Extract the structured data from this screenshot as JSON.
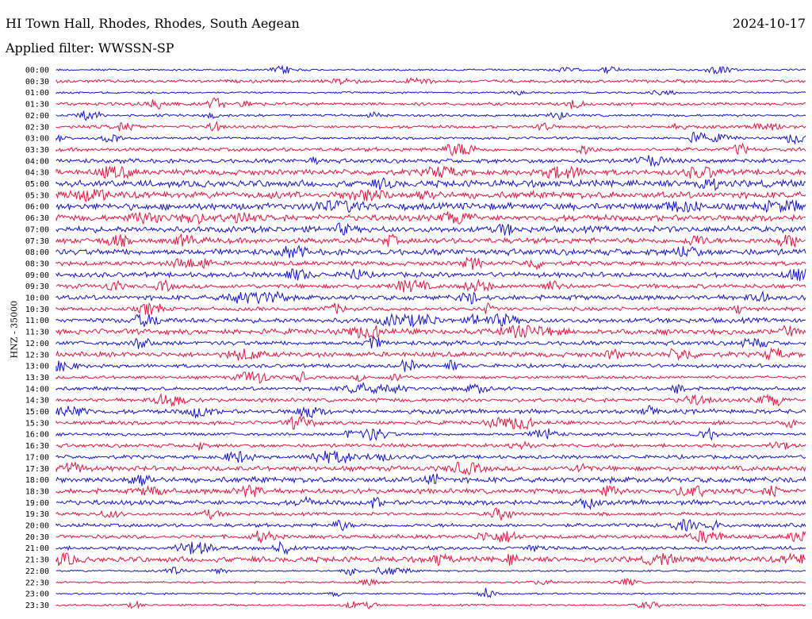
{
  "header": {
    "station": "HI Town Hall, Rhodes, Rhodes, South Aegean",
    "date": "2024-10-17",
    "filter": "Applied filter: WWSSN-SP"
  },
  "chart_data": {
    "type": "line",
    "title": "HI Town Hall, Rhodes, Rhodes, South Aegean",
    "ylabel": "HNZ - 35000",
    "row_labels": [
      "00:00",
      "00:30",
      "01:00",
      "01:30",
      "02:00",
      "02:30",
      "03:00",
      "03:30",
      "04:00",
      "04:30",
      "05:00",
      "05:30",
      "06:00",
      "06:30",
      "07:00",
      "07:30",
      "08:00",
      "08:30",
      "09:00",
      "09:30",
      "10:00",
      "10:30",
      "11:00",
      "11:30",
      "12:00",
      "12:30",
      "13:00",
      "13:30",
      "14:00",
      "14:30",
      "15:00",
      "15:30",
      "16:00",
      "16:30",
      "17:00",
      "17:30",
      "18:00",
      "18:30",
      "19:00",
      "19:30",
      "20:00",
      "20:30",
      "21:00",
      "21:30",
      "22:00",
      "22:30",
      "23:00",
      "23:30"
    ],
    "amplitude": [
      0.15,
      0.25,
      0.15,
      0.25,
      0.2,
      0.25,
      0.2,
      0.3,
      0.35,
      0.45,
      0.55,
      0.55,
      0.55,
      0.5,
      0.5,
      0.45,
      0.5,
      0.35,
      0.4,
      0.35,
      0.4,
      0.3,
      0.4,
      0.45,
      0.35,
      0.4,
      0.3,
      0.25,
      0.3,
      0.3,
      0.35,
      0.3,
      0.25,
      0.3,
      0.3,
      0.4,
      0.45,
      0.4,
      0.4,
      0.25,
      0.3,
      0.3,
      0.3,
      0.45,
      0.15,
      0.15,
      0.15,
      0.15
    ],
    "colors": [
      "#1414d4",
      "#e8143c"
    ],
    "grid": false
  }
}
